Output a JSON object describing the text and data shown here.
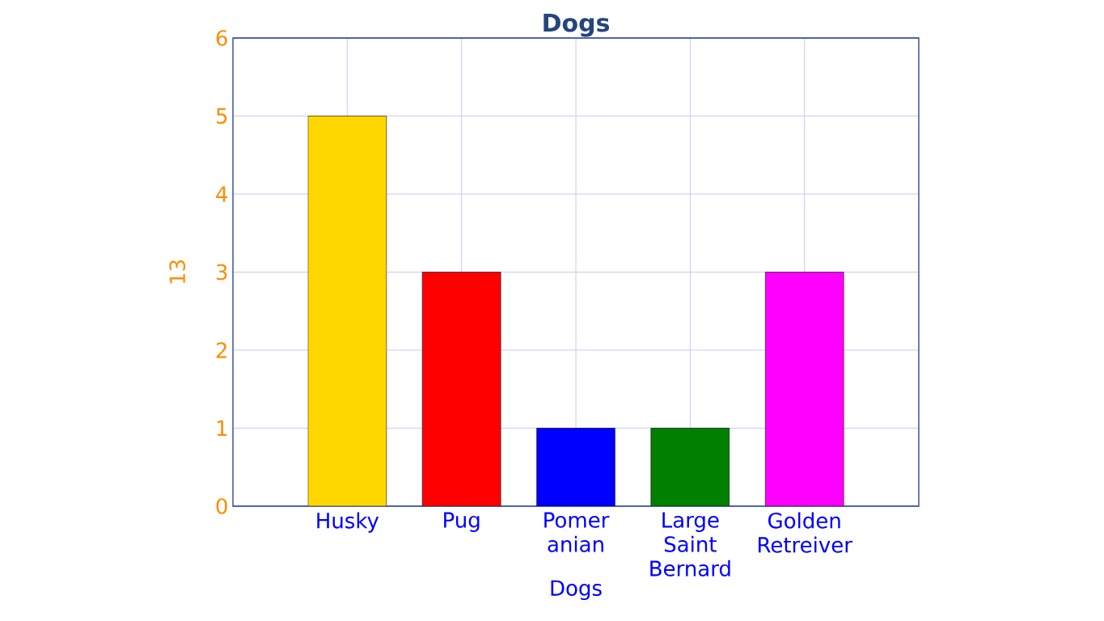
{
  "chart_data": {
    "type": "bar",
    "title": "Dogs",
    "xlabel": "Dogs",
    "ylabel": "13",
    "categories": [
      "Husky",
      "Pug",
      "Pomer anian",
      "Large Saint Bernard",
      "Golden Retreiver"
    ],
    "values": [
      5,
      3,
      1,
      1,
      3
    ],
    "colors": [
      "#ffd700",
      "#ff0000",
      "#0000ff",
      "#008000",
      "#ff00ff"
    ],
    "ylim": [
      0,
      6
    ],
    "yticks": [
      0,
      1,
      2,
      3,
      4,
      5,
      6
    ],
    "grid": true
  }
}
